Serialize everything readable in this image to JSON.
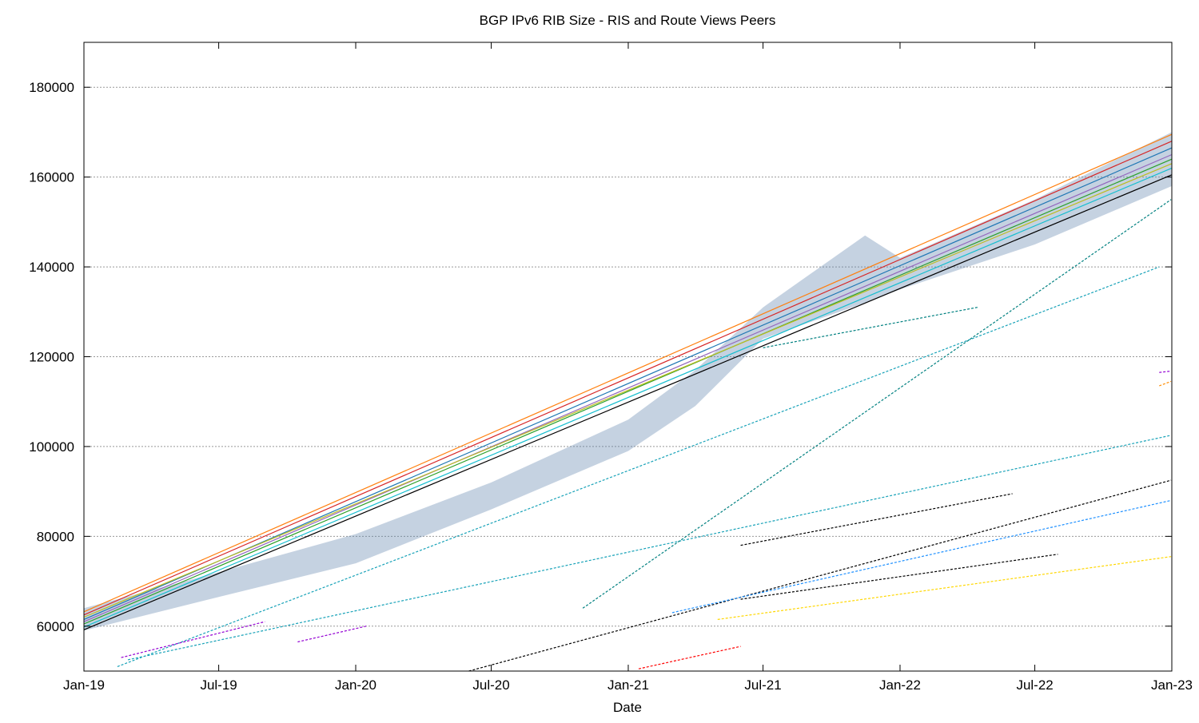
{
  "chart_data": {
    "type": "scatter",
    "title": "BGP IPv6 RIB Size - RIS and Route Views Peers",
    "xlabel": "Date",
    "ylabel": "",
    "xlim": [
      "2019-01-01",
      "2023-01-01"
    ],
    "ylim": [
      50000,
      190000
    ],
    "grid": "y-dotted",
    "legend": "none",
    "x_ticks": [
      {
        "date": "2019-01-01",
        "label": "Jan-19"
      },
      {
        "date": "2019-07-01",
        "label": "Jul-19"
      },
      {
        "date": "2020-01-01",
        "label": "Jan-20"
      },
      {
        "date": "2020-07-01",
        "label": "Jul-20"
      },
      {
        "date": "2021-01-01",
        "label": "Jan-21"
      },
      {
        "date": "2021-07-01",
        "label": "Jul-21"
      },
      {
        "date": "2022-01-01",
        "label": "Jan-22"
      },
      {
        "date": "2022-07-01",
        "label": "Jul-22"
      },
      {
        "date": "2023-01-01",
        "label": "Jan-23"
      }
    ],
    "y_ticks": [
      60000,
      80000,
      100000,
      120000,
      140000,
      160000,
      180000
    ],
    "main_band": {
      "x": [
        "2019-01-01",
        "2019-07-01",
        "2020-01-01",
        "2020-07-01",
        "2021-01-01",
        "2021-04-01",
        "2021-07-01",
        "2021-11-15",
        "2022-01-01",
        "2022-07-01",
        "2023-01-01"
      ],
      "low": [
        59000,
        66500,
        74000,
        86000,
        99000,
        109000,
        124000,
        132000,
        135000,
        145000,
        158000
      ],
      "high": [
        64000,
        72000,
        80500,
        92000,
        106000,
        117000,
        131000,
        147000,
        142000,
        155000,
        170000
      ]
    },
    "series": [
      {
        "color": "#1f77b4",
        "x": [
          "2019-01-01",
          "2023-01-01"
        ],
        "y": [
          61500,
          166500
        ]
      },
      {
        "color": "#d62728",
        "x": [
          "2019-01-01",
          "2023-01-01"
        ],
        "y": [
          62500,
          168000
        ]
      },
      {
        "color": "#2ca02c",
        "x": [
          "2019-01-01",
          "2023-01-01"
        ],
        "y": [
          60500,
          164000
        ]
      },
      {
        "color": "#17becf",
        "x": [
          "2019-01-01",
          "2023-01-01"
        ],
        "y": [
          59800,
          162000
        ]
      },
      {
        "color": "#ff7f0e",
        "x": [
          "2019-01-01",
          "2023-01-01"
        ],
        "y": [
          63200,
          169500
        ]
      },
      {
        "color": "#9467bd",
        "x": [
          "2019-01-01",
          "2023-01-01"
        ],
        "y": [
          61000,
          165000
        ]
      },
      {
        "color": "#bcbd22",
        "x": [
          "2019-01-01",
          "2023-01-01"
        ],
        "y": [
          62000,
          163000
        ]
      },
      {
        "color": "#000000",
        "x": [
          "2019-01-01",
          "2023-01-01"
        ],
        "y": [
          59200,
          160500
        ]
      },
      {
        "color": "#17a2b8",
        "x": [
          "2019-02-15",
          "2022-12-15"
        ],
        "y": [
          51000,
          140000
        ]
      },
      {
        "color": "#17a2b8",
        "x": [
          "2019-03-01",
          "2022-12-31"
        ],
        "y": [
          52500,
          102500
        ]
      },
      {
        "color": "#9400d3",
        "x": [
          "2019-02-20",
          "2019-09-01"
        ],
        "y": [
          53000,
          61000
        ]
      },
      {
        "color": "#9400d3",
        "x": [
          "2019-10-15",
          "2020-01-15"
        ],
        "y": [
          56500,
          60000
        ]
      },
      {
        "color": "#008080",
        "x": [
          "2020-11-01",
          "2022-12-31"
        ],
        "y": [
          64000,
          155000
        ]
      },
      {
        "color": "#000000",
        "x": [
          "2020-06-01",
          "2022-12-31"
        ],
        "y": [
          50000,
          92500
        ]
      },
      {
        "color": "#1e90ff",
        "x": [
          "2021-03-01",
          "2022-12-31"
        ],
        "y": [
          63000,
          88000
        ]
      },
      {
        "color": "#000000",
        "x": [
          "2021-06-01",
          "2022-08-01"
        ],
        "y": [
          66000,
          76000
        ]
      },
      {
        "color": "#ffd700",
        "x": [
          "2021-05-01",
          "2022-12-31"
        ],
        "y": [
          61500,
          75500
        ]
      },
      {
        "color": "#ff0000",
        "x": [
          "2021-01-15",
          "2021-06-01"
        ],
        "y": [
          50500,
          55500
        ]
      },
      {
        "color": "#000000",
        "x": [
          "2021-06-01",
          "2022-06-01"
        ],
        "y": [
          78000,
          89500
        ]
      },
      {
        "color": "#008080",
        "x": [
          "2021-07-01",
          "2022-04-15"
        ],
        "y": [
          122000,
          131000
        ]
      },
      {
        "color": "#9400d3",
        "x": [
          "2022-12-15",
          "2022-12-31"
        ],
        "y": [
          116500,
          116800
        ]
      },
      {
        "color": "#ff8c00",
        "x": [
          "2022-12-15",
          "2022-12-31"
        ],
        "y": [
          113500,
          114500
        ]
      }
    ]
  }
}
